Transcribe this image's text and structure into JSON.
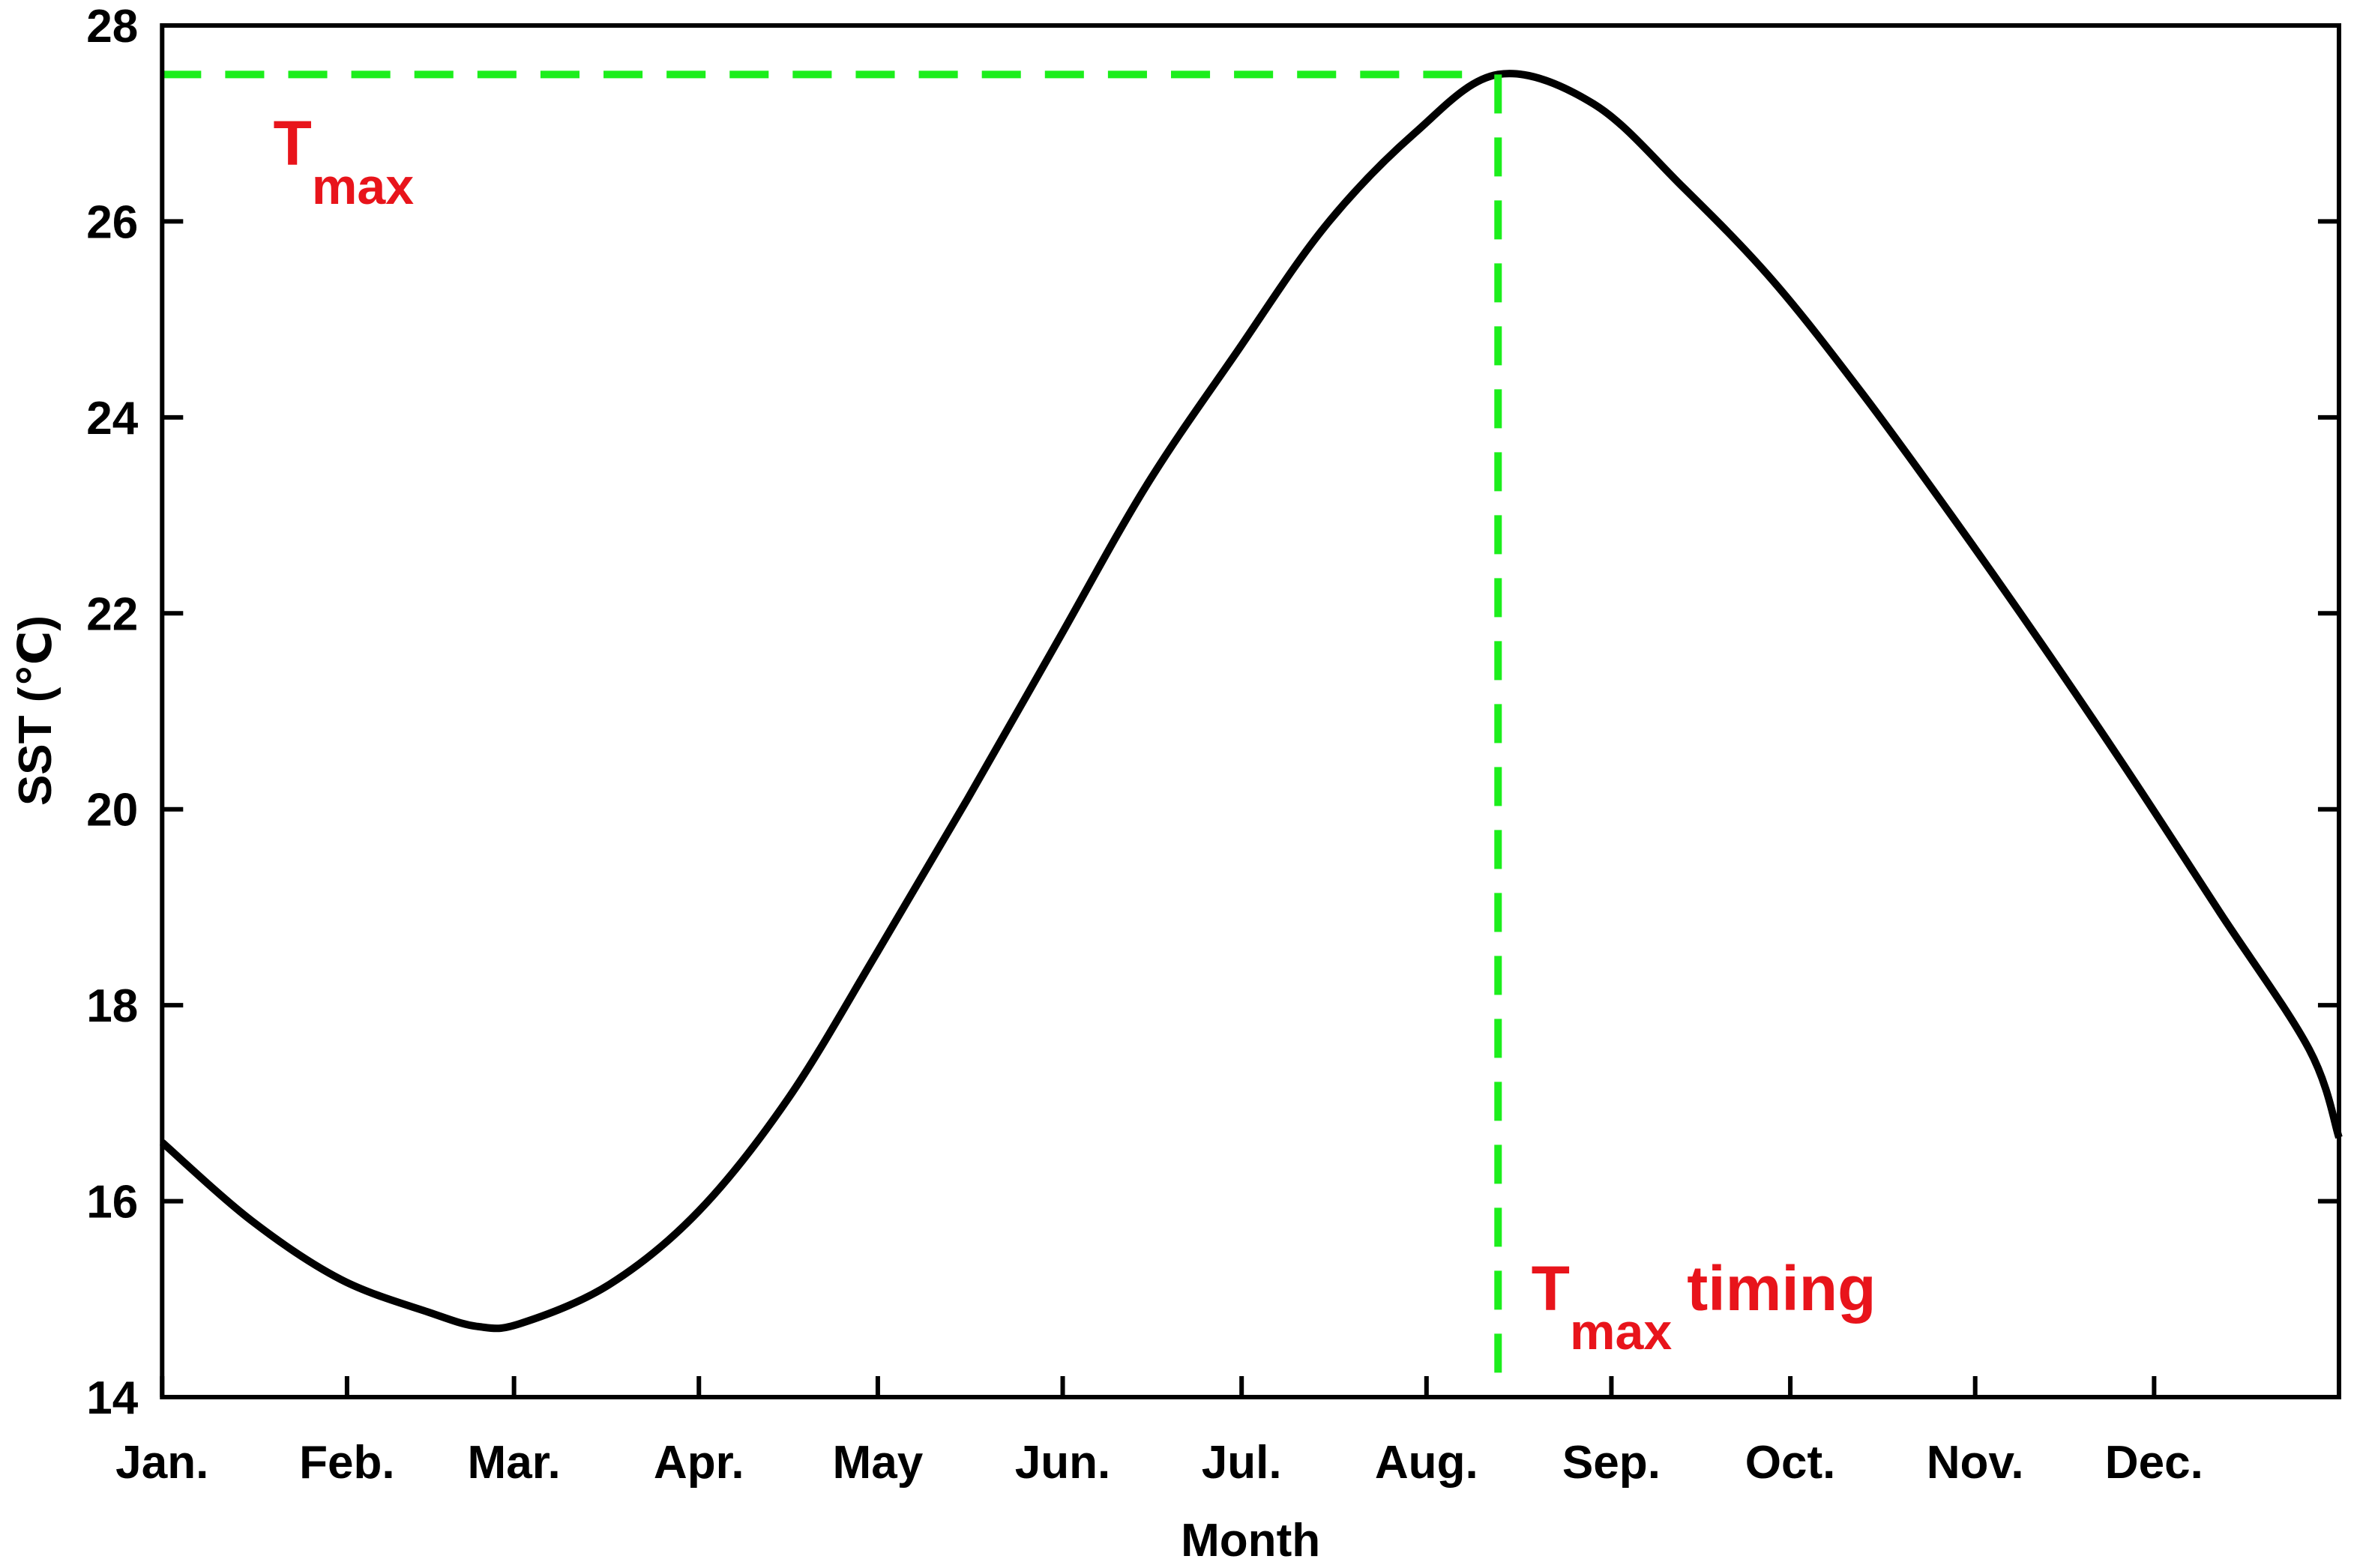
{
  "chart_data": {
    "type": "line",
    "y_label": "SST (℃)",
    "x_label": "Month",
    "x": [
      0,
      15,
      30,
      45,
      53,
      60,
      75,
      90,
      105,
      120,
      135,
      150,
      165,
      180,
      195,
      210,
      224,
      240,
      255,
      270,
      285,
      300,
      315,
      330,
      345,
      360,
      365
    ],
    "series": [
      {
        "color": "#000000",
        "values": [
          16.6,
          15.8,
          15.2,
          14.86,
          14.72,
          14.75,
          15.15,
          15.9,
          17.05,
          18.55,
          20.1,
          21.7,
          23.3,
          24.65,
          25.95,
          26.9,
          27.5,
          27.2,
          26.35,
          25.4,
          24.25,
          23.0,
          21.7,
          20.35,
          18.95,
          17.55,
          16.65
        ]
      }
    ],
    "xlim": [
      0,
      365
    ],
    "xticks": [
      {
        "value": 0,
        "label": "Jan."
      },
      {
        "value": 31,
        "label": "Feb."
      },
      {
        "value": 59,
        "label": "Mar."
      },
      {
        "value": 90,
        "label": "Apr."
      },
      {
        "value": 120,
        "label": "May"
      },
      {
        "value": 151,
        "label": "Jun."
      },
      {
        "value": 181,
        "label": "Jul."
      },
      {
        "value": 212,
        "label": "Aug."
      },
      {
        "value": 243,
        "label": "Sep."
      },
      {
        "value": 273,
        "label": "Oct."
      },
      {
        "value": 304,
        "label": "Nov."
      },
      {
        "value": 334,
        "label": "Dec."
      }
    ],
    "ylim": [
      14,
      28
    ],
    "yticks": [
      14,
      16,
      18,
      20,
      22,
      24,
      26,
      28
    ],
    "tmax": 27.5,
    "tmax_day": 224,
    "marker_color": "#1cee1c",
    "annotation_color": "#e8141b",
    "annotations": [
      {
        "main": "T",
        "sub": "max"
      },
      {
        "main": "T",
        "sub": "max",
        "suffix": "timing"
      }
    ]
  }
}
